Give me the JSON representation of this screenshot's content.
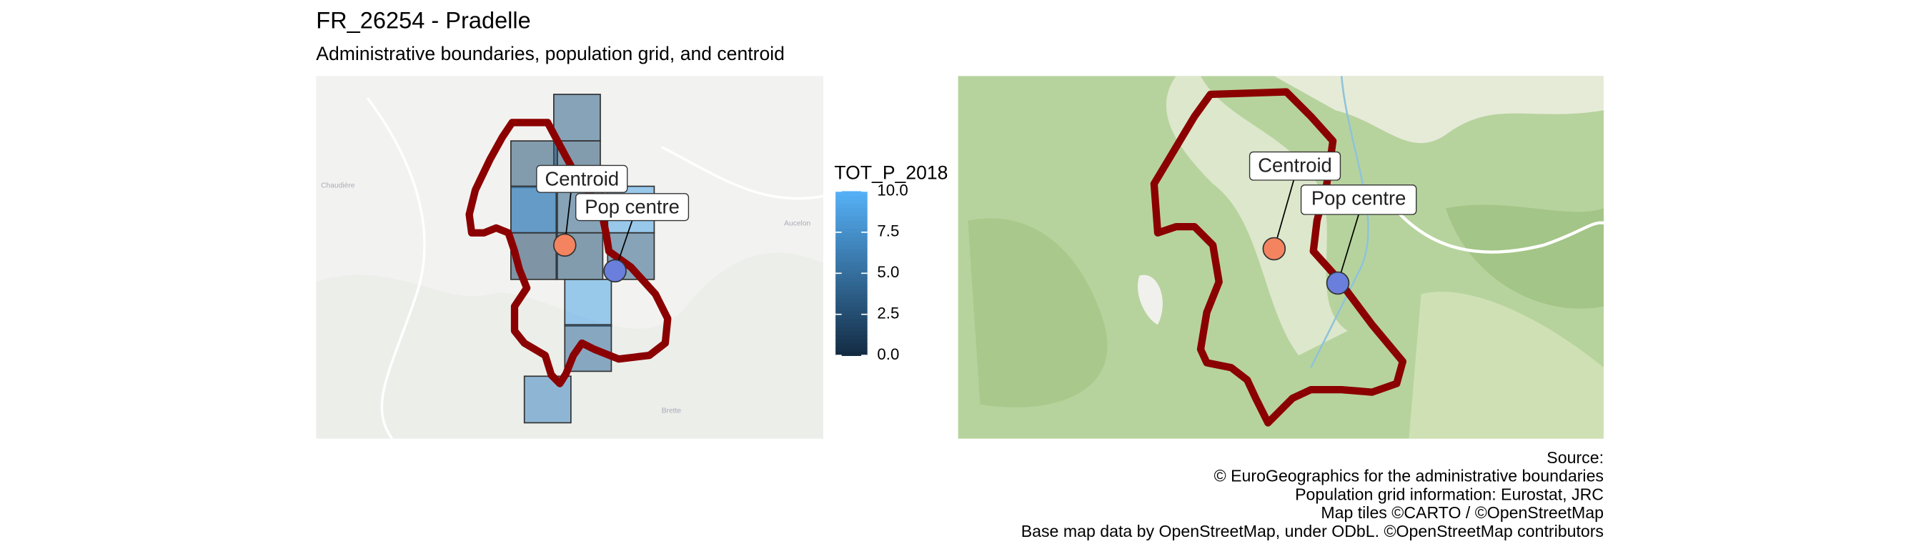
{
  "header": {
    "title": "FR_26254 - Pradelle",
    "subtitle": "Administrative boundaries, population grid, and centroid"
  },
  "labels": {
    "centroid": "Centroid",
    "pop_centre": "Pop centre"
  },
  "population_grid": {
    "values": [
      4,
      3,
      3,
      4,
      8,
      4,
      9,
      2,
      3,
      4,
      9,
      5,
      7
    ]
  },
  "legend": {
    "title": "TOT_P_2018",
    "limits": [
      0,
      10
    ],
    "low_color": "#132B43",
    "high_color": "#56B1F7",
    "ticks": [
      {
        "value": 0,
        "label": "0.0"
      },
      {
        "value": 2.5,
        "label": "2.5"
      },
      {
        "value": 5,
        "label": "5.0"
      },
      {
        "value": 7.5,
        "label": "7.5"
      },
      {
        "value": 10,
        "label": "10.0"
      }
    ]
  },
  "source": [
    "Source: ",
    "© EuroGeographics for the administrative boundaries",
    "Population grid information: Eurostat, JRC",
    "Map tiles ©CARTO / ©OpenStreetMap",
    "Base map data by OpenStreetMap, under ODbL. ©OpenStreetMap contributors"
  ]
}
